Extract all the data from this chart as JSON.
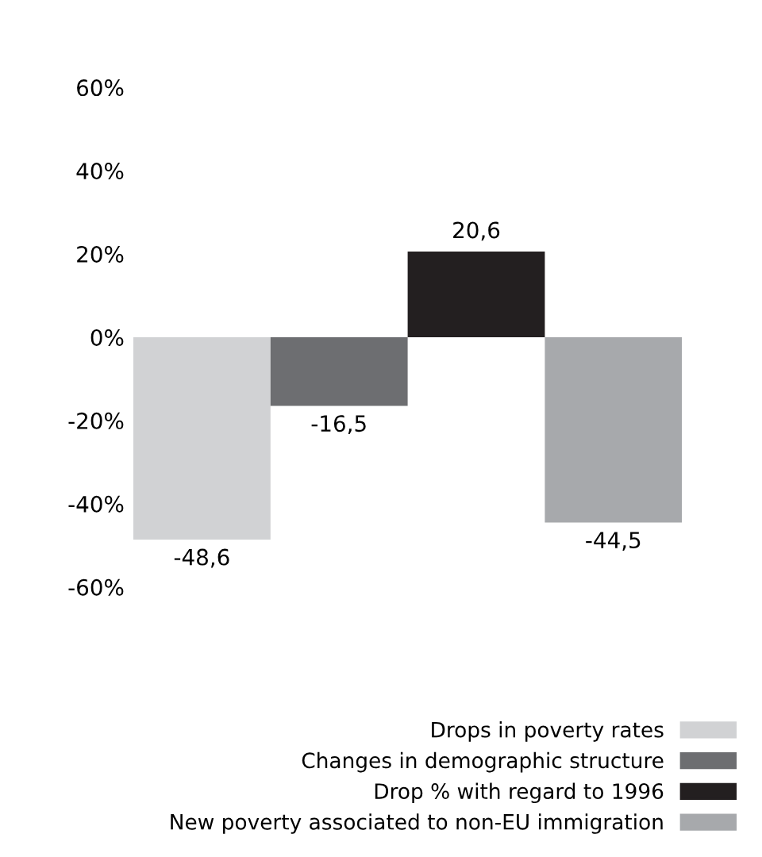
{
  "chart_data": {
    "type": "bar",
    "categories": [
      null
    ],
    "series": [
      {
        "name": "Drops in poverty rates",
        "color": "#d1d2d4",
        "values": [
          -48.6
        ],
        "value_labels": [
          "-48,6"
        ]
      },
      {
        "name": "Changes in demographic structure",
        "color": "#6d6e71",
        "values": [
          -16.5
        ],
        "value_labels": [
          "-16,5"
        ]
      },
      {
        "name": "Drop % with regard to 1996",
        "color": "#231f20",
        "values": [
          20.6
        ],
        "value_labels": [
          "20,6"
        ]
      },
      {
        "name": "New poverty associated to non-EU immigration",
        "color": "#a7a9ac",
        "values": [
          -44.5
        ],
        "value_labels": [
          "-44,5"
        ]
      }
    ],
    "ylim": [
      -60,
      60
    ],
    "yticks": [
      {
        "value": 60,
        "label": "60%"
      },
      {
        "value": 40,
        "label": "40%"
      },
      {
        "value": 20,
        "label": "20%"
      },
      {
        "value": 0,
        "label": "0%"
      },
      {
        "value": -20,
        "label": "-20%"
      },
      {
        "value": -40,
        "label": "-40%"
      },
      {
        "value": -60,
        "label": "-60%"
      }
    ],
    "grid": false,
    "legend": "bottom right"
  }
}
